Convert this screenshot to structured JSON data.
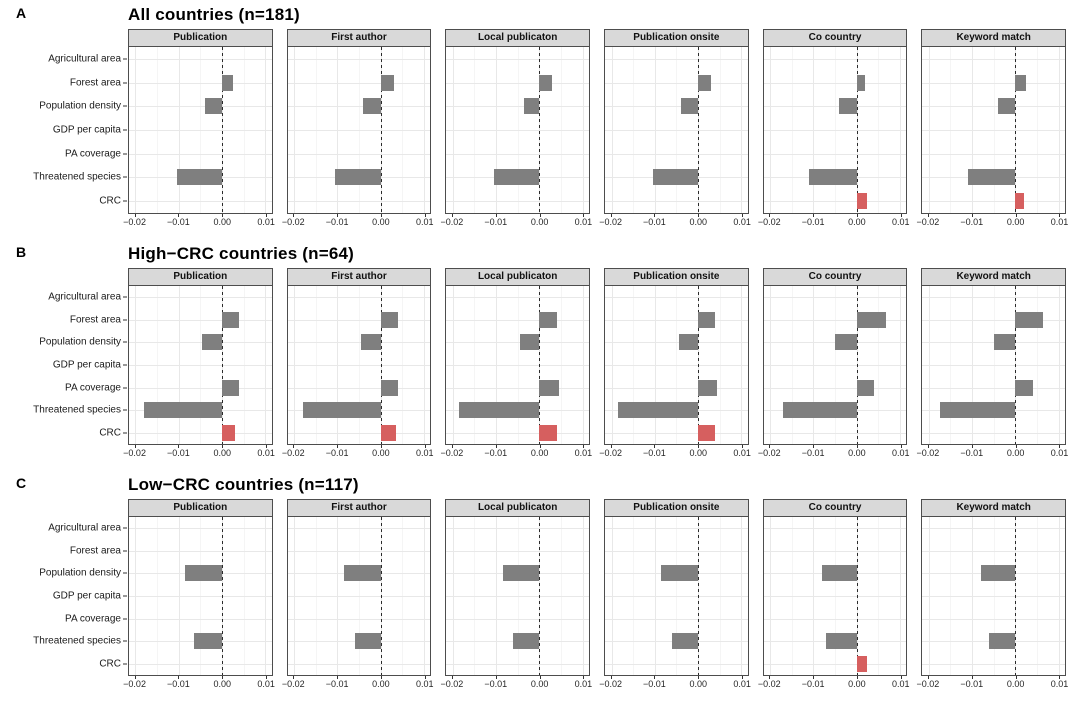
{
  "figure": {
    "categories": [
      "Agricultural area",
      "Forest area",
      "Population density",
      "GDP per capita",
      "PA coverage",
      "Threatened species",
      "CRC"
    ],
    "facet_labels": [
      "Publication",
      "First author",
      "Local publicaton",
      "Publication onsite",
      "Co country",
      "Keyword match"
    ],
    "x_tick_values": [
      -0.02,
      -0.01,
      0,
      0.01
    ],
    "x_tick_labels": [
      "−0.02",
      "−0.01",
      "0.00",
      "0.01"
    ],
    "x_minor_values": [
      -0.015,
      -0.005,
      0.005
    ],
    "xlim": [
      -0.0215,
      0.0115
    ],
    "grid": true,
    "legend": "none",
    "colors": {
      "bar_gray": "#7f7f7f",
      "bar_red": "#d65f5f",
      "strip_bg": "#d9d9d9",
      "panel_border": "#4d4d4d",
      "grid_major": "#e8e8e8",
      "grid_minor": "#f5f5f5"
    }
  },
  "chart_data": [
    {
      "panel_letter": "A",
      "title": "All countries (n=181)",
      "type": "bar",
      "orientation": "horizontal",
      "categories": [
        "Agricultural area",
        "Forest area",
        "Population density",
        "GDP per capita",
        "PA coverage",
        "Threatened species",
        "CRC"
      ],
      "facets": [
        {
          "label": "Publication",
          "values": [
            0,
            0.0026,
            -0.004,
            0,
            0,
            -0.0105,
            0
          ]
        },
        {
          "label": "First author",
          "values": [
            0,
            0.003,
            -0.004,
            0,
            0,
            -0.0105,
            0
          ]
        },
        {
          "label": "Local publicaton",
          "values": [
            0,
            0.003,
            -0.0035,
            0,
            0,
            -0.0105,
            0
          ]
        },
        {
          "label": "Publication onsite",
          "values": [
            0,
            0.003,
            -0.004,
            0,
            0,
            -0.0105,
            0
          ]
        },
        {
          "label": "Co country",
          "values": [
            0,
            0.002,
            -0.004,
            0,
            0,
            -0.011,
            0.0025
          ]
        },
        {
          "label": "Keyword match",
          "values": [
            0,
            0.0024,
            -0.004,
            0,
            0,
            -0.011,
            0.002
          ]
        }
      ]
    },
    {
      "panel_letter": "B",
      "title": "High−CRC countries (n=64)",
      "type": "bar",
      "orientation": "horizontal",
      "categories": [
        "Agricultural area",
        "Forest area",
        "Population density",
        "GDP per capita",
        "PA coverage",
        "Threatened species",
        "CRC"
      ],
      "facets": [
        {
          "label": "Publication",
          "values": [
            0,
            0.004,
            -0.0045,
            0,
            0.004,
            -0.018,
            0.003
          ]
        },
        {
          "label": "First author",
          "values": [
            0,
            0.004,
            -0.0045,
            0,
            0.004,
            -0.018,
            0.0035
          ]
        },
        {
          "label": "Local publicaton",
          "values": [
            0,
            0.004,
            -0.0045,
            0,
            0.0045,
            -0.0185,
            0.004
          ]
        },
        {
          "label": "Publication onsite",
          "values": [
            0,
            0.004,
            -0.0045,
            0,
            0.0045,
            -0.0185,
            0.004
          ]
        },
        {
          "label": "Co country",
          "values": [
            0,
            0.0068,
            -0.005,
            0,
            0.004,
            -0.017,
            0
          ]
        },
        {
          "label": "Keyword match",
          "values": [
            0,
            0.0065,
            -0.005,
            0,
            0.004,
            -0.0175,
            0
          ]
        }
      ]
    },
    {
      "panel_letter": "C",
      "title": "Low−CRC countries (n=117)",
      "type": "bar",
      "orientation": "horizontal",
      "categories": [
        "Agricultural area",
        "Forest area",
        "Population density",
        "GDP per capita",
        "PA coverage",
        "Threatened species",
        "CRC"
      ],
      "facets": [
        {
          "label": "Publication",
          "values": [
            0,
            0,
            -0.0085,
            0,
            0,
            -0.0065,
            0
          ]
        },
        {
          "label": "First author",
          "values": [
            0,
            0,
            -0.0085,
            0,
            0,
            -0.006,
            0
          ]
        },
        {
          "label": "Local publicaton",
          "values": [
            0,
            0,
            -0.0085,
            0,
            0,
            -0.006,
            0
          ]
        },
        {
          "label": "Publication onsite",
          "values": [
            0,
            0,
            -0.0085,
            0,
            0,
            -0.006,
            0
          ]
        },
        {
          "label": "Co country",
          "values": [
            0,
            0,
            -0.008,
            0,
            0,
            -0.007,
            0.0025
          ]
        },
        {
          "label": "Keyword match",
          "values": [
            0,
            0,
            -0.008,
            0,
            0,
            -0.006,
            0
          ]
        }
      ]
    }
  ]
}
